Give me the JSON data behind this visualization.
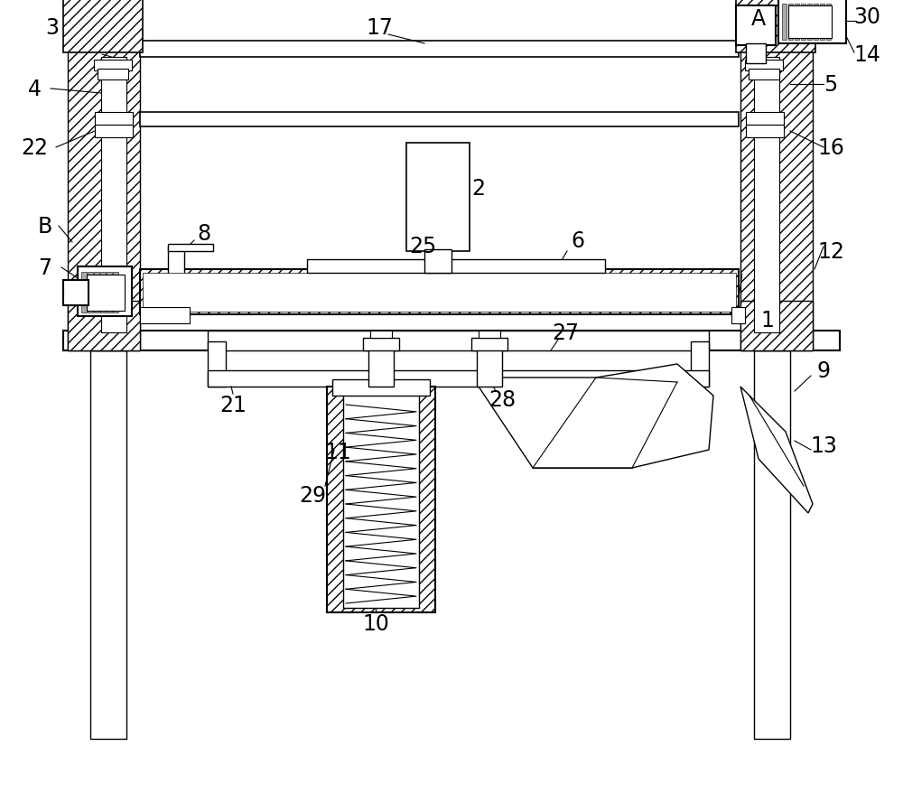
{
  "bg_color": "#ffffff",
  "figsize": [
    10.0,
    8.79
  ],
  "dpi": 100
}
